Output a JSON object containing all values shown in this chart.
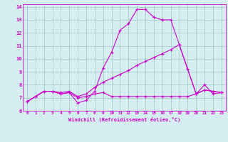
{
  "xlabel": "Windchill (Refroidissement éolien,°C)",
  "background_color": "#d4eef2",
  "line_color": "#cc00cc",
  "grid_color": "#aacccc",
  "xlim": [
    -0.5,
    23.5
  ],
  "ylim": [
    6,
    14.2
  ],
  "xticks": [
    0,
    1,
    2,
    3,
    4,
    5,
    6,
    7,
    8,
    9,
    10,
    11,
    12,
    13,
    14,
    15,
    16,
    17,
    18,
    19,
    20,
    21,
    22,
    23
  ],
  "yticks": [
    6,
    7,
    8,
    9,
    10,
    11,
    12,
    13,
    14
  ],
  "line1_x": [
    0,
    1,
    2,
    3,
    4,
    5,
    6,
    7,
    8,
    9,
    10,
    11,
    12,
    13,
    14,
    15,
    16,
    17,
    18,
    19,
    20,
    21,
    22,
    23
  ],
  "line1_y": [
    6.7,
    7.1,
    7.5,
    7.5,
    7.3,
    7.4,
    6.6,
    6.8,
    7.5,
    9.3,
    10.5,
    12.2,
    12.7,
    13.8,
    13.8,
    13.2,
    13.0,
    13.0,
    11.1,
    9.2,
    7.3,
    8.0,
    7.3,
    7.4
  ],
  "line2_x": [
    0,
    1,
    2,
    3,
    4,
    5,
    6,
    7,
    8,
    9,
    10,
    11,
    12,
    13,
    14,
    15,
    16,
    17,
    18,
    19,
    20,
    21,
    22,
    23
  ],
  "line2_y": [
    6.7,
    7.1,
    7.5,
    7.5,
    7.4,
    7.5,
    7.1,
    7.3,
    7.8,
    8.2,
    8.5,
    8.8,
    9.1,
    9.5,
    9.8,
    10.1,
    10.4,
    10.7,
    11.1,
    9.2,
    7.3,
    7.6,
    7.5,
    7.4
  ],
  "line3_x": [
    0,
    1,
    2,
    3,
    4,
    5,
    6,
    7,
    8,
    9,
    10,
    11,
    12,
    13,
    14,
    15,
    16,
    17,
    18,
    19,
    20,
    21,
    22,
    23
  ],
  "line3_y": [
    6.7,
    7.1,
    7.5,
    7.5,
    7.3,
    7.4,
    7.0,
    7.1,
    7.3,
    7.4,
    7.1,
    7.1,
    7.1,
    7.1,
    7.1,
    7.1,
    7.1,
    7.1,
    7.1,
    7.1,
    7.3,
    7.6,
    7.5,
    7.4
  ]
}
